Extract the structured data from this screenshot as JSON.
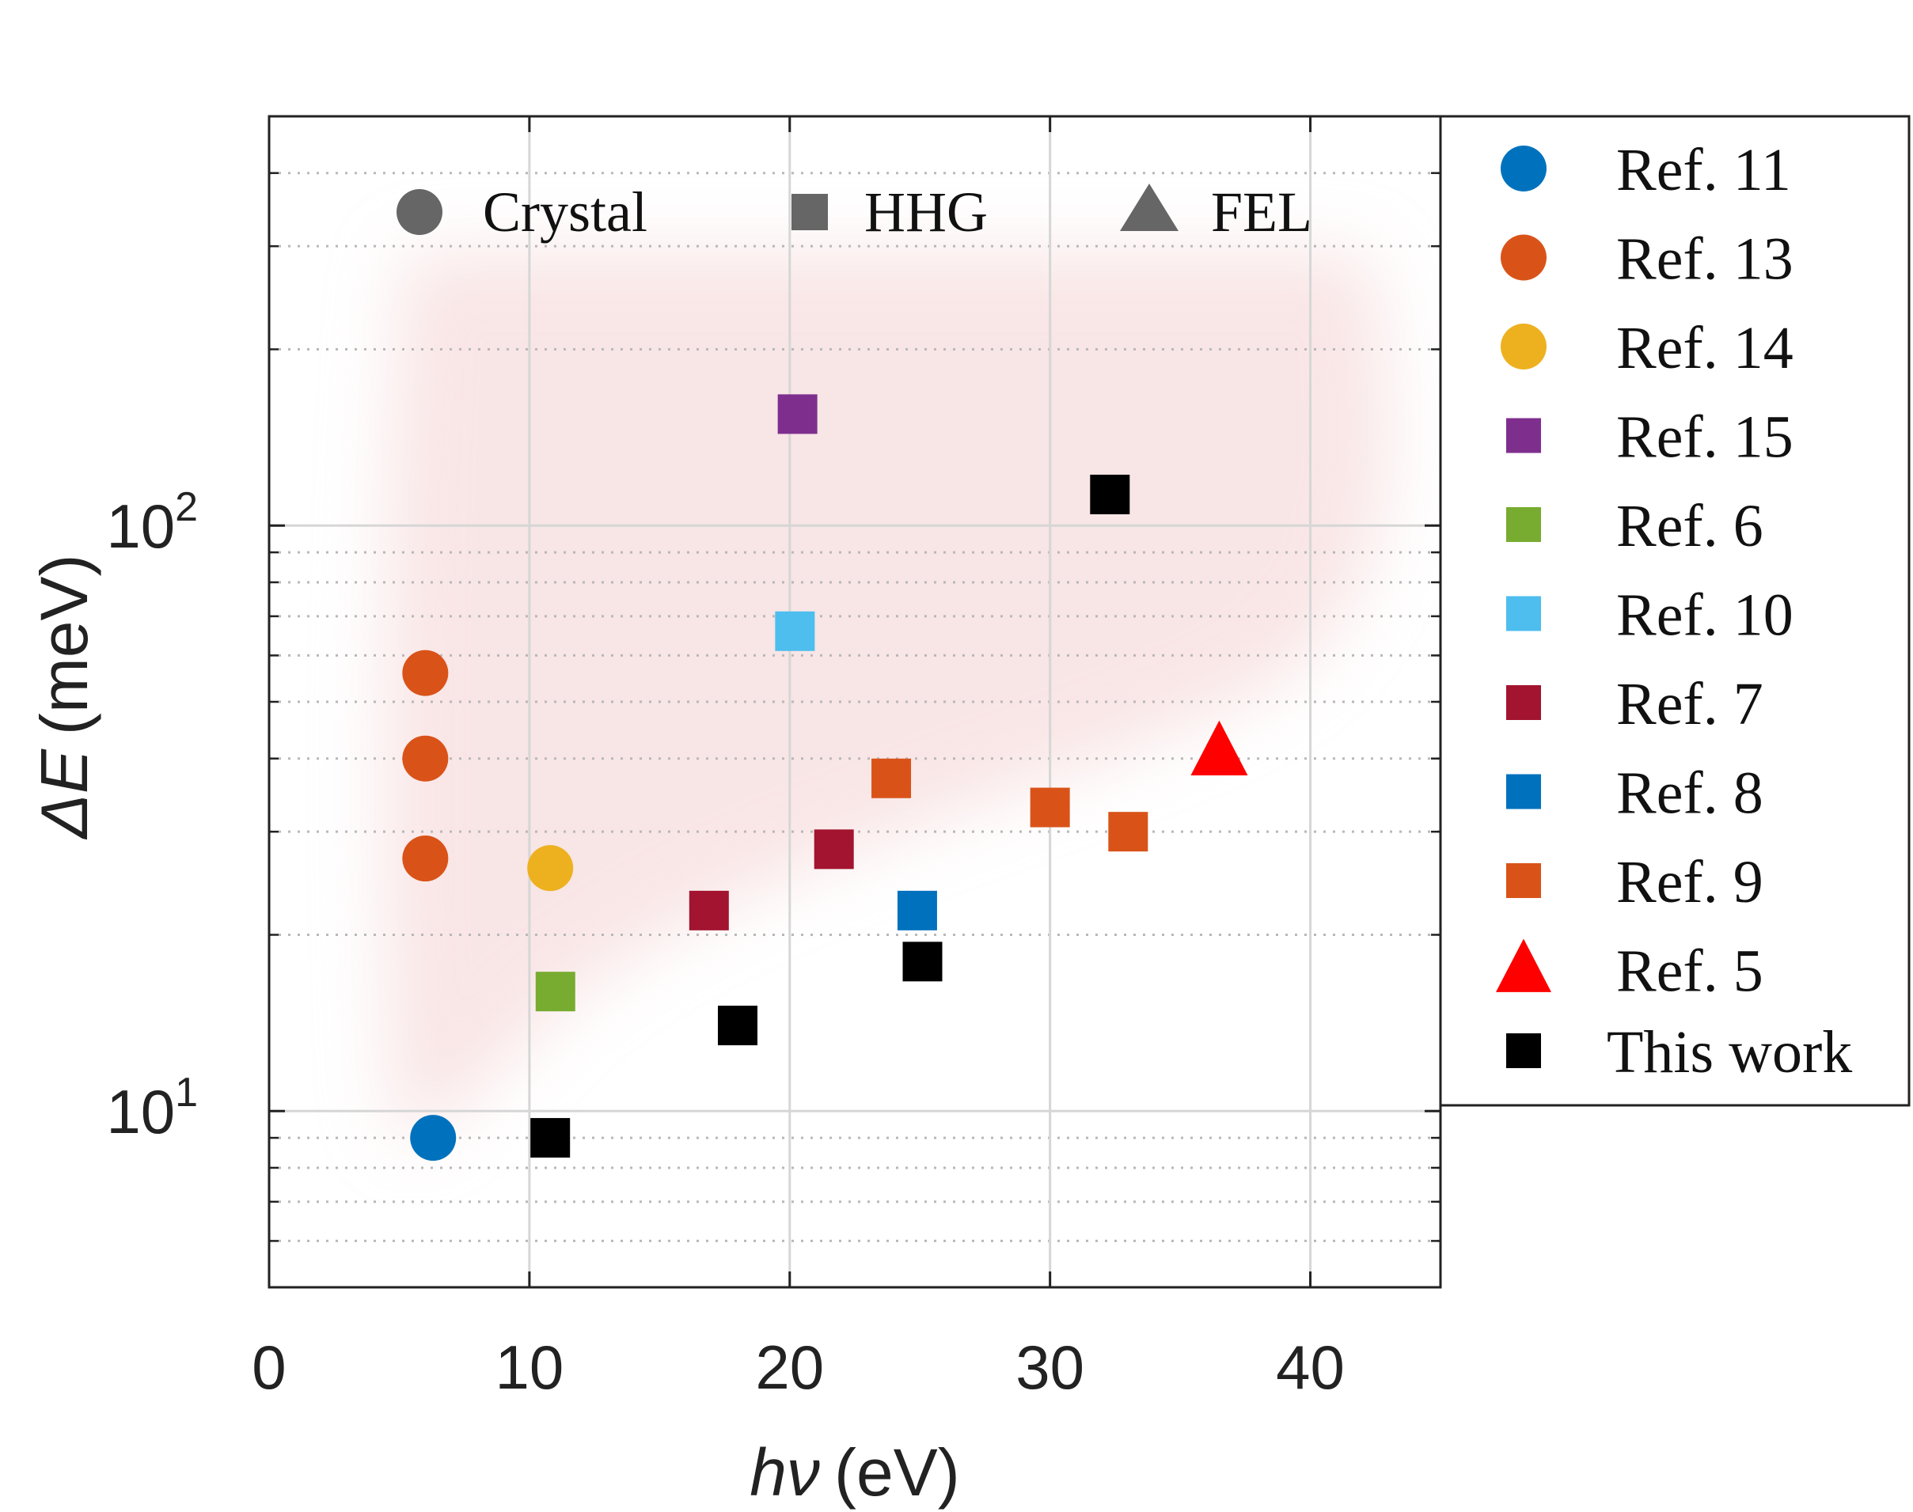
{
  "chart_data": {
    "type": "scatter",
    "x_scale": "linear",
    "y_scale": "log",
    "xlim": [
      0,
      45
    ],
    "ylim": [
      5,
      500
    ],
    "x_ticks": [
      0,
      10,
      20,
      30,
      40
    ],
    "x_tick_labels": [
      "0",
      "10",
      "20",
      "30",
      "40"
    ],
    "y_major_ticks": [
      10,
      100
    ],
    "y_tick_labels": [
      {
        "value": 10,
        "base": "10",
        "exp": "1"
      },
      {
        "value": 100,
        "base": "10",
        "exp": "2"
      }
    ],
    "xlabel": {
      "symbol": "hν",
      "unit": "(eV)"
    },
    "ylabel": {
      "symbol": "ΔE",
      "unit": "(meV)"
    },
    "grid": "major solid, minor dotted",
    "shaded_region": "light red fan-shaped band behind the data",
    "type_key": [
      {
        "marker": "circle",
        "label": "Crystal"
      },
      {
        "marker": "square",
        "label": "HHG"
      },
      {
        "marker": "triangle",
        "label": "FEL"
      }
    ],
    "series": [
      {
        "name": "Ref. 11",
        "marker": "circle",
        "color": "#0072BD",
        "points": [
          [
            6.3,
            9
          ]
        ]
      },
      {
        "name": "Ref. 13",
        "marker": "circle",
        "color": "#D95319",
        "points": [
          [
            6.0,
            56
          ],
          [
            6.0,
            40
          ],
          [
            6.0,
            27
          ]
        ]
      },
      {
        "name": "Ref. 14",
        "marker": "circle",
        "color": "#EDB120",
        "points": [
          [
            10.8,
            26
          ]
        ]
      },
      {
        "name": "Ref. 15",
        "marker": "square",
        "color": "#7E2F8E",
        "points": [
          [
            20.3,
            155
          ]
        ]
      },
      {
        "name": "Ref. 6",
        "marker": "square",
        "color": "#77AC30",
        "points": [
          [
            11.0,
            16
          ]
        ]
      },
      {
        "name": "Ref. 10",
        "marker": "square",
        "color": "#4DBEEE",
        "points": [
          [
            20.2,
            66
          ]
        ]
      },
      {
        "name": "Ref. 7",
        "marker": "square",
        "color": "#A2142F",
        "points": [
          [
            16.9,
            22
          ],
          [
            21.7,
            28
          ]
        ]
      },
      {
        "name": "Ref. 8",
        "marker": "square",
        "color": "#0072BD",
        "points": [
          [
            24.9,
            22
          ]
        ]
      },
      {
        "name": "Ref. 9",
        "marker": "square",
        "color": "#D95319",
        "points": [
          [
            23.9,
            37
          ],
          [
            30.0,
            33
          ],
          [
            33.0,
            30
          ]
        ]
      },
      {
        "name": "Ref. 5",
        "marker": "triangle",
        "color": "#FF0000",
        "points": [
          [
            36.5,
            41
          ]
        ]
      },
      {
        "name": "This work",
        "marker": "square",
        "color": "#000000",
        "points": [
          [
            10.8,
            9
          ],
          [
            18.0,
            14
          ],
          [
            25.1,
            18
          ],
          [
            32.3,
            113
          ]
        ]
      }
    ]
  },
  "colors": {
    "axis": "#222222",
    "grid": "#d6d6d6",
    "minor_grid": "#b8b8b8",
    "type_key_marker": "#666666",
    "shade": "#f4d0d0"
  }
}
